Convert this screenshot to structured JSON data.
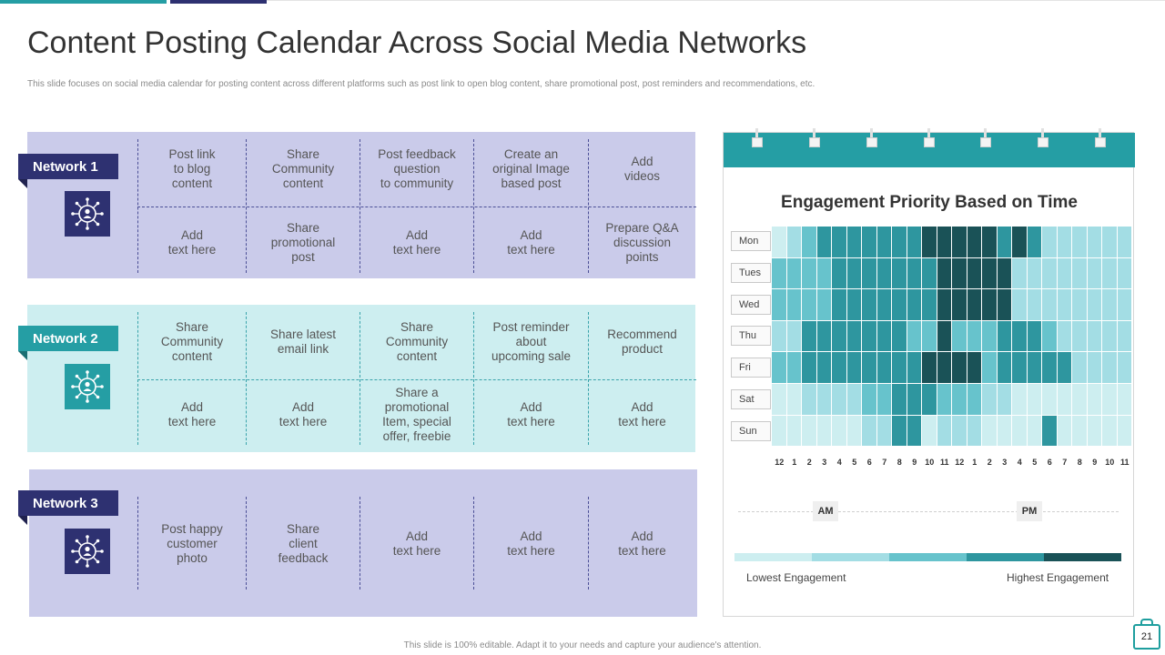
{
  "header": {
    "title": "Content Posting Calendar Across Social Media Networks",
    "subtitle": "This slide focuses on social media calendar for posting content across different platforms such as post link to open blog content, share promotional post, post reminders and recommendations, etc."
  },
  "colors": {
    "navy": "#2e3171",
    "teal": "#259ea4",
    "lavender_bg": "#cacbea",
    "aqua_bg": "#cdeef0",
    "lavender_line": "#4b4f96",
    "teal_line": "#3aa3ab"
  },
  "networks": [
    {
      "label": "Network 1",
      "icon": "network-people-icon",
      "row1": [
        "Post link\nto blog\ncontent",
        "Share\nCommunity\ncontent",
        "Post feedback\nquestion\nto community",
        "Create an\noriginal Image\nbased post",
        "Add\nvideos"
      ],
      "row2": [
        "Add\ntext here",
        "Share\npromotional\npost",
        "Add\ntext here",
        "Add\ntext here",
        "Prepare Q&A\ndiscussion\npoints"
      ]
    },
    {
      "label": "Network 2",
      "icon": "network-people-icon",
      "row1": [
        "Share\nCommunity\ncontent",
        "Share latest\nemail link",
        "Share\nCommunity\ncontent",
        "Post reminder\nabout\nupcoming sale",
        "Recommend\nproduct"
      ],
      "row2": [
        "Add\ntext here",
        "Add\ntext here",
        "Share a\npromotional\nItem, special\noffer,  freebie",
        "Add\ntext here",
        "Add\ntext here"
      ]
    },
    {
      "label": "Network 3",
      "icon": "network-people-icon",
      "row1": [
        "Post happy\ncustomer\nphoto",
        "Share\nclient\nfeedback",
        "Add\ntext here",
        "Add\ntext here",
        "Add\ntext here"
      ]
    }
  ],
  "calendar": {
    "title": "Engagement Priority Based on Time",
    "days": [
      "Mon",
      "Tues",
      "Wed",
      "Thu",
      "Fri",
      "Sat",
      "Sun"
    ],
    "hours": [
      "12",
      "1",
      "2",
      "3",
      "4",
      "5",
      "6",
      "7",
      "8",
      "9",
      "10",
      "11",
      "12",
      "1",
      "2",
      "3",
      "4",
      "5",
      "6",
      "7",
      "8",
      "9",
      "10",
      "11"
    ],
    "am_label": "AM",
    "pm_label": "PM",
    "legend_low": "Lowest Engagement",
    "legend_high": "Highest Engagement",
    "palette": [
      "#cdeef0",
      "#a3dde4",
      "#67c3cc",
      "#2e969f",
      "#1a5257"
    ],
    "levels": [
      [
        0,
        1,
        2,
        3,
        3,
        3,
        3,
        3,
        3,
        3,
        4,
        4,
        4,
        4,
        4,
        3,
        4,
        3,
        1,
        1,
        1,
        1,
        1,
        1
      ],
      [
        2,
        2,
        2,
        2,
        3,
        3,
        3,
        3,
        3,
        3,
        3,
        4,
        4,
        4,
        4,
        4,
        1,
        1,
        1,
        1,
        1,
        1,
        1,
        1
      ],
      [
        2,
        2,
        2,
        2,
        3,
        3,
        3,
        3,
        3,
        3,
        3,
        4,
        4,
        4,
        4,
        4,
        1,
        1,
        1,
        1,
        1,
        1,
        1,
        1
      ],
      [
        1,
        1,
        3,
        3,
        3,
        3,
        3,
        3,
        3,
        2,
        2,
        4,
        2,
        2,
        2,
        3,
        3,
        3,
        2,
        1,
        1,
        1,
        1,
        1
      ],
      [
        2,
        2,
        3,
        3,
        3,
        3,
        3,
        3,
        3,
        3,
        4,
        4,
        4,
        4,
        2,
        3,
        3,
        3,
        3,
        3,
        1,
        1,
        1,
        1
      ],
      [
        0,
        0,
        1,
        1,
        1,
        1,
        2,
        2,
        3,
        3,
        3,
        2,
        2,
        2,
        1,
        1,
        0,
        0,
        0,
        0,
        0,
        0,
        0,
        0
      ],
      [
        0,
        0,
        0,
        0,
        0,
        0,
        1,
        1,
        3,
        3,
        0,
        1,
        1,
        1,
        0,
        0,
        0,
        0,
        3,
        0,
        0,
        0,
        0,
        0
      ]
    ]
  },
  "footer": {
    "text": "This slide is 100% editable. Adapt it to your needs and capture your audience's attention."
  },
  "page": {
    "number": "21"
  }
}
